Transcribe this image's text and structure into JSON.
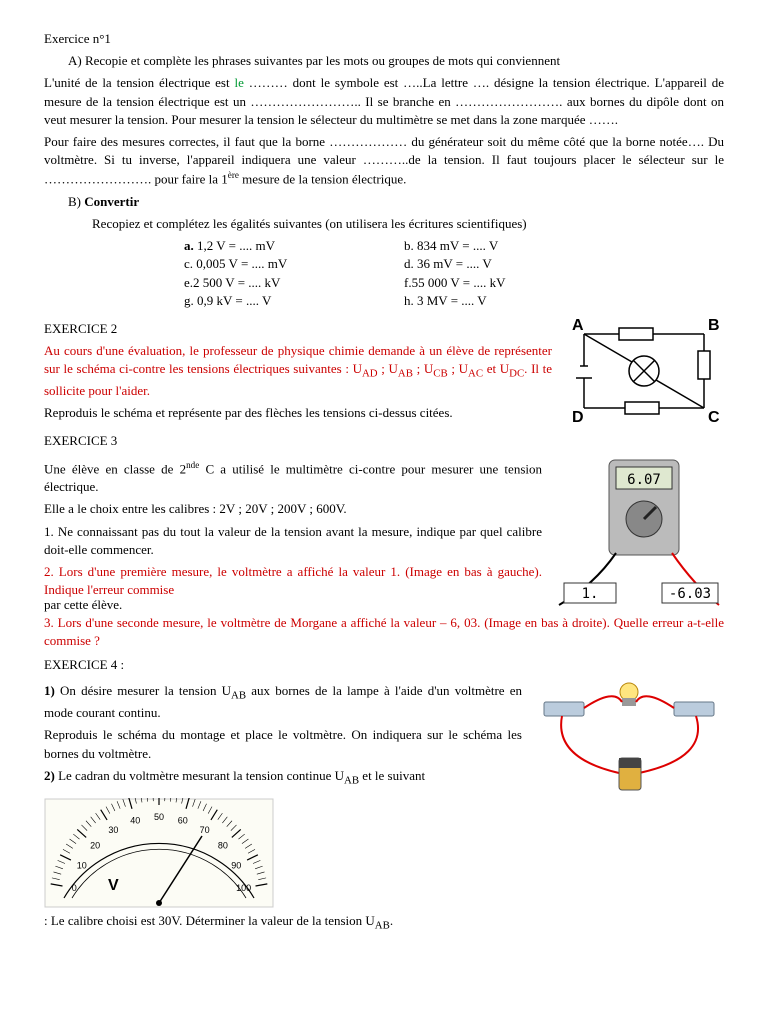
{
  "ex1": {
    "title": "Exercice n°1",
    "partA": "A) Recopie et complète les phrases suivantes par les mots ou groupes de mots qui conviennent",
    "para1a": "L'unité de la tension électrique est ",
    "le": "le",
    "para1b": " ……… dont le symbole est …..La lettre …. désigne la tension électrique. L'appareil de mesure de la tension électrique est un …………………….. Il se branche en ……………………. aux bornes du dipôle dont on veut mesurer la tension. Pour mesurer la tension le sélecteur du multimètre se met dans la zone marquée …….",
    "para2": "Pour faire des mesures correctes, il faut que la borne ……………… du générateur soit du même côté que la borne notée…. Du voltmètre. Si tu inverse, l'appareil indiquera une valeur ………..de la tension. Il faut toujours placer le sélecteur sur le ……………………. pour faire la 1",
    "ere": "ère",
    "para2b": " mesure de la tension électrique.",
    "partB_title": "Convertir",
    "partB_sub": "Recopiez et complétez les égalités suivantes (on utilisera les écritures scientifiques)",
    "conv": {
      "a": "a.  1,2 V = .... mV",
      "b": "b. 834 mV = .... V",
      "c": "c. 0,005 V = .... mV",
      "d": "d. 36 mV = .... V",
      "e": "e.2 500 V = .... kV",
      "f": "f.55 000 V = .... kV",
      "g": "g. 0,9 kV = .... V",
      "h": "h. 3 MV = .... V"
    }
  },
  "ex2": {
    "title": "EXERCICE 2",
    "p1": "Au cours d'une évaluation, le professeur de physique chimie demande à un élève de représenter sur le schéma ci-contre les tensions électriques suivantes : U",
    "ad": "AD",
    "p1b": " ; U",
    "ab": "AB",
    "p1c": " ; U",
    "cb": "CB",
    "p1d": " ; U",
    "ac": "AC",
    "p1e": " et U",
    "dc": "DC",
    "p1f": ". Il te sollicite pour l'aider.",
    "p2": "Reproduis le schéma et représente par des flèches les tensions ci-dessus citées.",
    "labels": {
      "A": "A",
      "B": "B",
      "C": "C",
      "D": "D"
    }
  },
  "ex3": {
    "title": "EXERCICE 3",
    "p1a": "Une élève en classe de 2",
    "nde": "nde",
    "p1b": " C a utilisé le multimètre ci-contre pour mesurer une tension électrique.",
    "p2": "Elle a le choix entre les calibres : 2V ; 20V ; 200V ; 600V.",
    "q1": "1. Ne connaissant pas du tout la valeur de la tension avant la mesure, indique par quel calibre doit-elle commencer.",
    "q2a": "2. Lors d'une première mesure, le voltmètre a affiché la valeur 1. (Image en bas à gauche). Indique l'erreur commise",
    "q2b": "par cette élève.",
    "q3": "3. Lors d'une seconde mesure, le voltmètre de Morgane a affiché la valeur – 6, 03. (Image en bas à droite). Quelle erreur a-t-elle commise ?",
    "display1": "6.07",
    "display2": "1.",
    "display3": "-6.03"
  },
  "ex4": {
    "title": "EXERCICE 4 :",
    "q1a": "1)",
    "q1b": " On désire mesurer la tension U",
    "ab": "AB",
    "q1c": " aux bornes de la lampe à l'aide d'un voltmètre en mode courant continu.",
    "q1d": "Reproduis le schéma du montage et place le voltmètre. On indiquera sur le schéma les bornes du voltmètre.",
    "q2a": "2)",
    "q2b": " Le cadran du voltmètre mesurant la tension continue U",
    "q2c": " et le suivant",
    "vlabel": "V",
    "ticks": [
      "0",
      "10",
      "20",
      "30",
      "40",
      "50",
      "60",
      "70",
      "80",
      "90",
      "100"
    ],
    "last": ": Le calibre choisi est 30V. Déterminer la valeur de la tension U",
    "last2": "."
  }
}
